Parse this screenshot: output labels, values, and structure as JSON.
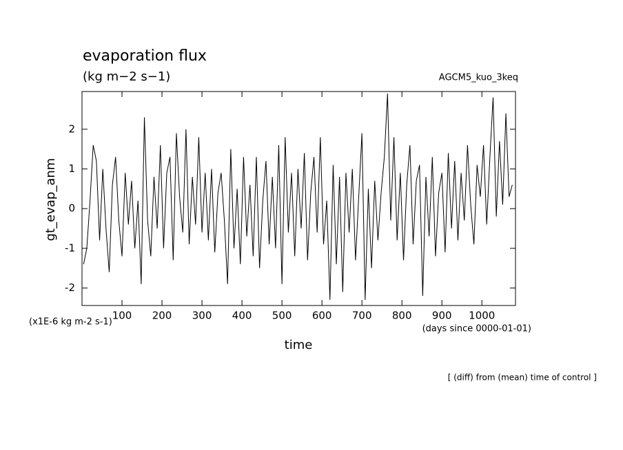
{
  "chart_data": {
    "type": "line",
    "title": "evaporation flux",
    "subtitle": "(kg m−2 s−1)",
    "annotation": "AGCM5_kuo_3keq",
    "ylabel": "gt_evap_anm",
    "xlabel": "time",
    "yunit": "(x1E-6 kg m-2 s-1)",
    "xunit": "(days since 0000-01-01)",
    "note": "[ (diff) from (mean) time of control ]",
    "xlim": [
      0,
      1084
    ],
    "ylim": [
      -2.44,
      2.95
    ],
    "xticks": [
      100,
      200,
      300,
      400,
      500,
      600,
      700,
      800,
      900,
      1000
    ],
    "yticks": [
      -2,
      -1,
      0,
      1,
      2
    ],
    "series": [
      {
        "color": "#000000",
        "x": [
          4,
          12,
          20,
          28,
          36,
          44,
          52,
          60,
          68,
          76,
          84,
          92,
          100,
          108,
          116,
          124,
          132,
          140,
          148,
          156,
          164,
          172,
          180,
          188,
          196,
          204,
          212,
          220,
          228,
          236,
          244,
          252,
          260,
          268,
          276,
          284,
          292,
          300,
          308,
          316,
          324,
          332,
          340,
          348,
          356,
          364,
          372,
          380,
          388,
          396,
          404,
          412,
          420,
          428,
          436,
          444,
          452,
          460,
          468,
          476,
          484,
          492,
          500,
          508,
          516,
          524,
          532,
          540,
          548,
          556,
          564,
          572,
          580,
          588,
          596,
          604,
          612,
          620,
          628,
          636,
          644,
          652,
          660,
          668,
          676,
          684,
          692,
          700,
          708,
          716,
          724,
          732,
          740,
          748,
          756,
          764,
          772,
          780,
          788,
          796,
          804,
          812,
          820,
          828,
          836,
          844,
          852,
          860,
          868,
          876,
          884,
          892,
          900,
          908,
          916,
          924,
          932,
          940,
          948,
          956,
          964,
          972,
          980,
          988,
          996,
          1004,
          1012,
          1020,
          1028,
          1036,
          1044,
          1052,
          1060,
          1068,
          1076
        ],
        "values": [
          -1.4,
          -1.0,
          0.2,
          1.6,
          1.2,
          -0.8,
          1.0,
          -0.5,
          -1.6,
          0.6,
          1.3,
          -0.3,
          -1.2,
          0.9,
          -0.4,
          0.7,
          -1.0,
          0.2,
          -1.9,
          2.3,
          -0.3,
          -1.2,
          0.8,
          -0.5,
          1.6,
          -1.0,
          0.9,
          1.3,
          -1.3,
          1.9,
          0.3,
          -0.6,
          2.0,
          -0.9,
          0.8,
          -0.4,
          1.8,
          -0.6,
          0.9,
          -0.8,
          1.0,
          -1.1,
          0.4,
          0.9,
          -0.3,
          -1.9,
          1.5,
          -1.0,
          0.5,
          -1.4,
          1.3,
          -0.7,
          0.6,
          -1.2,
          1.3,
          -1.5,
          0.2,
          1.2,
          -0.9,
          0.8,
          -1.0,
          1.6,
          -1.9,
          1.8,
          -0.6,
          0.9,
          -1.2,
          1.0,
          -0.5,
          1.4,
          -1.3,
          0.4,
          1.3,
          -0.6,
          1.8,
          -0.9,
          0.2,
          -2.3,
          1.1,
          -1.4,
          0.8,
          -2.1,
          0.9,
          -0.6,
          1.0,
          -1.3,
          0.3,
          1.9,
          -2.3,
          0.5,
          -1.5,
          0.7,
          -0.8,
          0.4,
          1.3,
          2.9,
          -0.3,
          1.8,
          -0.8,
          0.9,
          -1.3,
          0.6,
          1.6,
          -0.9,
          0.7,
          1.1,
          -2.2,
          0.8,
          -0.7,
          1.3,
          -1.2,
          0.4,
          0.9,
          -1.1,
          1.4,
          -0.5,
          1.2,
          -0.8,
          0.9,
          -0.3,
          1.6,
          0.1,
          -0.9,
          1.1,
          0.3,
          1.6,
          -0.4,
          1.3,
          2.8,
          -0.2,
          1.7,
          0.1,
          2.4,
          0.3,
          0.6
        ]
      }
    ]
  }
}
